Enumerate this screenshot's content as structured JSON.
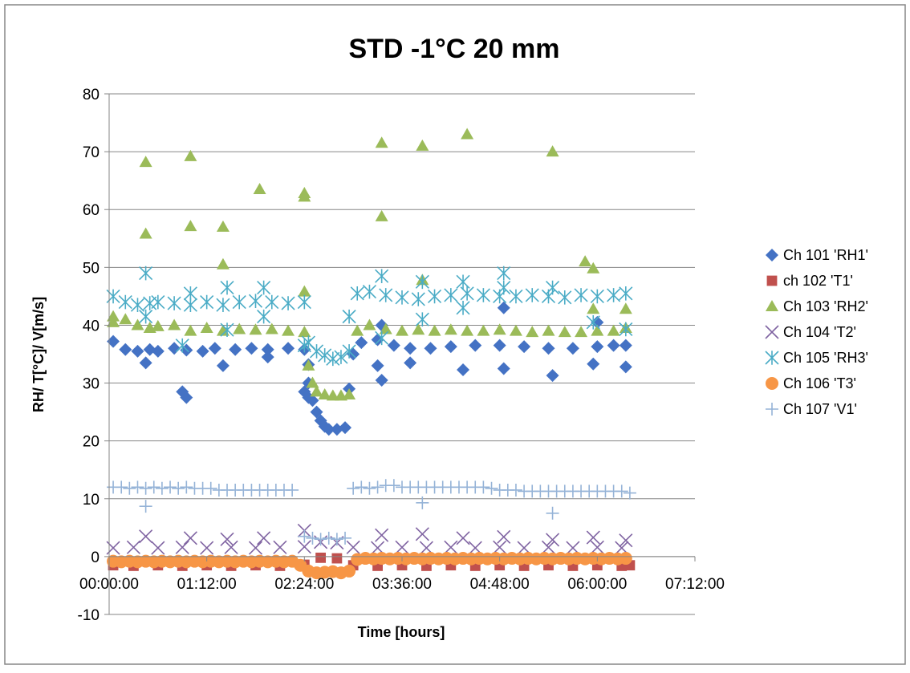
{
  "chart_data": {
    "type": "scatter",
    "title": "STD -1°C 20 mm",
    "xlabel": "Time [hours]",
    "ylabel": "RH/ T[°C]/ V[m/s]",
    "xlim": [
      0,
      7.2
    ],
    "ylim": [
      -10,
      80
    ],
    "x_ticks": [
      "00:00:00",
      "01:12:00",
      "02:24:00",
      "03:36:00",
      "04:48:00",
      "06:00:00",
      "07:12:00"
    ],
    "y_ticks": [
      "-10",
      "0",
      "10",
      "20",
      "30",
      "40",
      "50",
      "60",
      "70",
      "80"
    ],
    "grid": "horizontal",
    "legend_position": "right",
    "x_unit": "hours",
    "series": [
      {
        "name": "Ch 101 'RH1'",
        "color": "#4472C4",
        "marker": "diamond",
        "x": [
          0.05,
          0.2,
          0.35,
          0.5,
          0.6,
          0.8,
          0.95,
          1.15,
          1.3,
          1.55,
          1.75,
          1.95,
          2.2,
          2.4,
          2.45,
          2.5,
          2.55,
          2.6,
          2.65,
          2.7,
          2.8,
          2.9,
          2.95,
          3.0,
          3.1,
          3.3,
          3.5,
          3.7,
          3.95,
          4.2,
          4.5,
          4.8,
          5.1,
          5.4,
          5.7,
          6.0,
          6.2,
          6.35,
          0.45,
          0.9,
          0.95,
          1.4,
          1.95,
          2.4,
          2.45,
          3.3,
          3.35,
          3.7,
          4.35,
          4.85,
          5.45,
          5.95,
          6.35,
          4.85,
          3.35,
          2.45,
          6.0
        ],
        "y": [
          37.2,
          35.8,
          35.5,
          35.8,
          35.5,
          36,
          35.7,
          35.5,
          36,
          35.8,
          36,
          35.8,
          36,
          35.8,
          30,
          27,
          25,
          23.5,
          22.5,
          22,
          22,
          22.3,
          29,
          35,
          37,
          37.5,
          36.5,
          36,
          36,
          36.3,
          36.5,
          36.5,
          36.3,
          36,
          36,
          36.3,
          36.5,
          36.5,
          33.5,
          28.5,
          27.5,
          33,
          34.5,
          28.5,
          27.5,
          33,
          30.5,
          33.5,
          32.3,
          32.5,
          31.3,
          33.3,
          32.8,
          43,
          40,
          33.2,
          40.5
        ]
      },
      {
        "name": "ch 102 'T1'",
        "color": "#C0504D",
        "marker": "square",
        "x": [
          0.05,
          0.3,
          0.6,
          0.9,
          1.2,
          1.5,
          1.8,
          2.1,
          2.4,
          2.6,
          2.8,
          3.0,
          3.3,
          3.6,
          3.9,
          4.2,
          4.5,
          4.8,
          5.1,
          5.4,
          5.7,
          6.0,
          6.3,
          6.4
        ],
        "y": [
          -1.5,
          -1.6,
          -1.5,
          -1.6,
          -1.5,
          -1.6,
          -1.5,
          -1.6,
          -1.4,
          -0.2,
          -0.3,
          -1.5,
          -1.6,
          -1.5,
          -1.6,
          -1.5,
          -1.6,
          -1.5,
          -1.6,
          -1.5,
          -1.6,
          -1.5,
          -1.6,
          -1.5
        ]
      },
      {
        "name": "Ch 103 'RH2'",
        "color": "#9BBB59",
        "marker": "triangle",
        "x": [
          0.05,
          0.2,
          0.35,
          0.5,
          0.6,
          0.8,
          1.0,
          1.2,
          1.4,
          1.6,
          1.8,
          2.0,
          2.2,
          2.4,
          2.45,
          2.5,
          2.55,
          2.65,
          2.75,
          2.85,
          2.95,
          3.05,
          3.2,
          3.4,
          3.6,
          3.8,
          4.0,
          4.2,
          4.4,
          4.6,
          4.8,
          5.0,
          5.2,
          5.4,
          5.6,
          5.8,
          6.0,
          6.2,
          6.35,
          0.05,
          0.45,
          0.45,
          1.0,
          1.0,
          1.4,
          1.4,
          1.85,
          2.4,
          2.4,
          2.4,
          3.35,
          3.35,
          3.85,
          3.85,
          4.4,
          5.45,
          5.85,
          5.95,
          5.95,
          6.35
        ],
        "y": [
          41.5,
          41,
          40,
          39.5,
          39.8,
          40,
          39,
          39.5,
          39,
          39.3,
          39.2,
          39.3,
          39,
          38.8,
          33,
          30,
          28.5,
          28,
          27.8,
          27.8,
          28,
          39,
          40,
          39.3,
          39,
          39.2,
          39,
          39.2,
          39,
          39,
          39.2,
          39,
          38.8,
          39,
          38.8,
          38.8,
          39,
          39,
          39.5,
          40.5,
          68.2,
          55.8,
          69.2,
          57.1,
          57,
          50.5,
          63.5,
          62.8,
          62.2,
          45.8,
          71.5,
          58.8,
          71,
          47.8,
          73,
          70,
          51,
          49.8,
          42.8,
          42.8
        ]
      },
      {
        "name": "Ch 104 'T2'",
        "color": "#8064A2",
        "marker": "x",
        "x": [
          0.05,
          0.3,
          0.6,
          0.9,
          1.2,
          1.5,
          1.8,
          2.1,
          2.4,
          2.6,
          2.8,
          3.0,
          3.3,
          3.6,
          3.9,
          4.2,
          4.5,
          4.8,
          5.1,
          5.4,
          5.7,
          6.0,
          6.3,
          0.45,
          1.0,
          1.45,
          1.9,
          2.4,
          3.35,
          3.85,
          4.35,
          4.85,
          5.45,
          5.95,
          6.35
        ],
        "y": [
          1.5,
          1.6,
          1.5,
          1.6,
          1.5,
          1.6,
          1.5,
          1.6,
          1.7,
          2.5,
          2.4,
          1.6,
          1.5,
          1.6,
          1.5,
          1.6,
          1.5,
          1.6,
          1.5,
          1.6,
          1.5,
          1.6,
          1.5,
          3.5,
          3.2,
          3,
          3.2,
          4.5,
          3.7,
          3.9,
          3.2,
          3.4,
          2.9,
          3.3,
          2.8
        ]
      },
      {
        "name": "Ch 105 'RH3'",
        "color": "#4BACC6",
        "marker": "asterisk",
        "x": [
          0.05,
          0.2,
          0.35,
          0.5,
          0.6,
          0.8,
          1.0,
          1.2,
          1.4,
          1.6,
          1.8,
          2.0,
          2.2,
          2.4,
          2.45,
          2.55,
          2.65,
          2.75,
          2.85,
          2.95,
          3.05,
          3.2,
          3.4,
          3.6,
          3.8,
          4.0,
          4.2,
          4.4,
          4.6,
          4.8,
          5.0,
          5.2,
          5.4,
          5.6,
          5.8,
          6.0,
          6.2,
          6.35,
          0.45,
          0.45,
          0.9,
          1.0,
          1.45,
          1.45,
          1.9,
          1.9,
          2.4,
          2.95,
          3.35,
          3.35,
          3.85,
          3.85,
          4.35,
          4.35,
          4.85,
          4.85,
          5.45,
          5.95,
          6.35
        ],
        "y": [
          45,
          44,
          43.5,
          43.8,
          44,
          43.8,
          43.5,
          44,
          43.5,
          44,
          44.2,
          44,
          43.8,
          44,
          37,
          35.5,
          34.8,
          34.2,
          34.5,
          35.5,
          45.5,
          45.8,
          45.2,
          44.8,
          44.5,
          45,
          45.2,
          45.5,
          45.2,
          45,
          45,
          45.2,
          45,
          44.8,
          45.2,
          45,
          45.2,
          45.5,
          49,
          41.5,
          36.5,
          45.5,
          46.5,
          39.2,
          46.5,
          41.5,
          36.5,
          41.5,
          48.5,
          37.8,
          41,
          47.5,
          43,
          47.5,
          49,
          46.5,
          46.5,
          40.5,
          39.3
        ]
      },
      {
        "name": "Ch 106 'T3'",
        "color": "#F79646",
        "marker": "circle",
        "x": [
          0.05,
          0.15,
          0.25,
          0.35,
          0.45,
          0.55,
          0.65,
          0.75,
          0.85,
          0.95,
          1.05,
          1.15,
          1.25,
          1.35,
          1.45,
          1.55,
          1.65,
          1.75,
          1.85,
          1.95,
          2.05,
          2.15,
          2.25,
          2.35,
          2.45,
          2.55,
          2.65,
          2.75,
          2.85,
          2.95,
          3.05,
          3.15,
          3.25,
          3.35,
          3.45,
          3.55,
          3.65,
          3.75,
          3.85,
          3.95,
          4.05,
          4.15,
          4.25,
          4.35,
          4.45,
          4.55,
          4.65,
          4.75,
          4.85,
          4.95,
          5.05,
          5.15,
          5.25,
          5.35,
          5.45,
          5.55,
          5.65,
          5.75,
          5.85,
          5.95,
          6.05,
          6.15,
          6.25,
          6.35
        ],
        "y": [
          -0.8,
          -0.9,
          -0.8,
          -0.9,
          -0.8,
          -0.9,
          -0.8,
          -0.9,
          -0.8,
          -0.9,
          -0.8,
          -0.9,
          -0.8,
          -0.9,
          -0.8,
          -0.9,
          -0.8,
          -0.9,
          -0.8,
          -0.9,
          -0.8,
          -0.9,
          -0.8,
          -1.5,
          -2.5,
          -2.8,
          -2.7,
          -2.6,
          -2.8,
          -2.5,
          -0.5,
          -0.3,
          -0.4,
          -0.3,
          -0.4,
          -0.3,
          -0.4,
          -0.3,
          -0.4,
          -0.3,
          -0.4,
          -0.3,
          -0.4,
          -0.3,
          -0.4,
          -0.3,
          -0.4,
          -0.3,
          -0.4,
          -0.3,
          -0.4,
          -0.3,
          -0.4,
          -0.3,
          -0.4,
          -0.3,
          -0.4,
          -0.3,
          -0.4,
          -0.3,
          -0.4,
          -0.3,
          -0.4,
          -0.3
        ]
      },
      {
        "name": "Ch 107 'V1'",
        "color": "#95B3D7",
        "marker": "plus",
        "x": [
          0.05,
          0.15,
          0.25,
          0.35,
          0.45,
          0.55,
          0.65,
          0.75,
          0.85,
          0.95,
          1.05,
          1.15,
          1.25,
          1.35,
          1.45,
          1.55,
          1.65,
          1.75,
          1.85,
          1.95,
          2.05,
          2.15,
          2.25,
          2.4,
          2.5,
          2.6,
          2.7,
          2.8,
          2.9,
          3.0,
          3.1,
          3.2,
          3.3,
          3.4,
          3.5,
          3.6,
          3.7,
          3.8,
          3.9,
          4.0,
          4.1,
          4.2,
          4.3,
          4.4,
          4.5,
          4.6,
          4.7,
          4.8,
          4.9,
          5.0,
          5.1,
          5.2,
          5.3,
          5.4,
          5.5,
          5.6,
          5.7,
          5.8,
          5.9,
          6.0,
          6.1,
          6.2,
          6.3,
          6.4,
          0.45,
          3.85,
          5.45
        ],
        "y": [
          12,
          12,
          11.8,
          12,
          11.8,
          12,
          11.8,
          12,
          11.8,
          12,
          11.8,
          11.8,
          11.8,
          11.5,
          11.5,
          11.5,
          11.5,
          11.5,
          11.5,
          11.5,
          11.5,
          11.5,
          11.5,
          3.5,
          3.2,
          3.0,
          3.2,
          3.0,
          3.2,
          11.8,
          12,
          11.8,
          12,
          12.3,
          12.3,
          12,
          12,
          12,
          12,
          12,
          12,
          12,
          12,
          12,
          12,
          12,
          11.8,
          11.5,
          11.5,
          11.5,
          11.3,
          11.3,
          11.3,
          11.3,
          11.3,
          11.3,
          11.3,
          11.3,
          11.3,
          11.3,
          11.3,
          11.3,
          11.3,
          11,
          8.7,
          9.3,
          7.5
        ]
      }
    ]
  }
}
